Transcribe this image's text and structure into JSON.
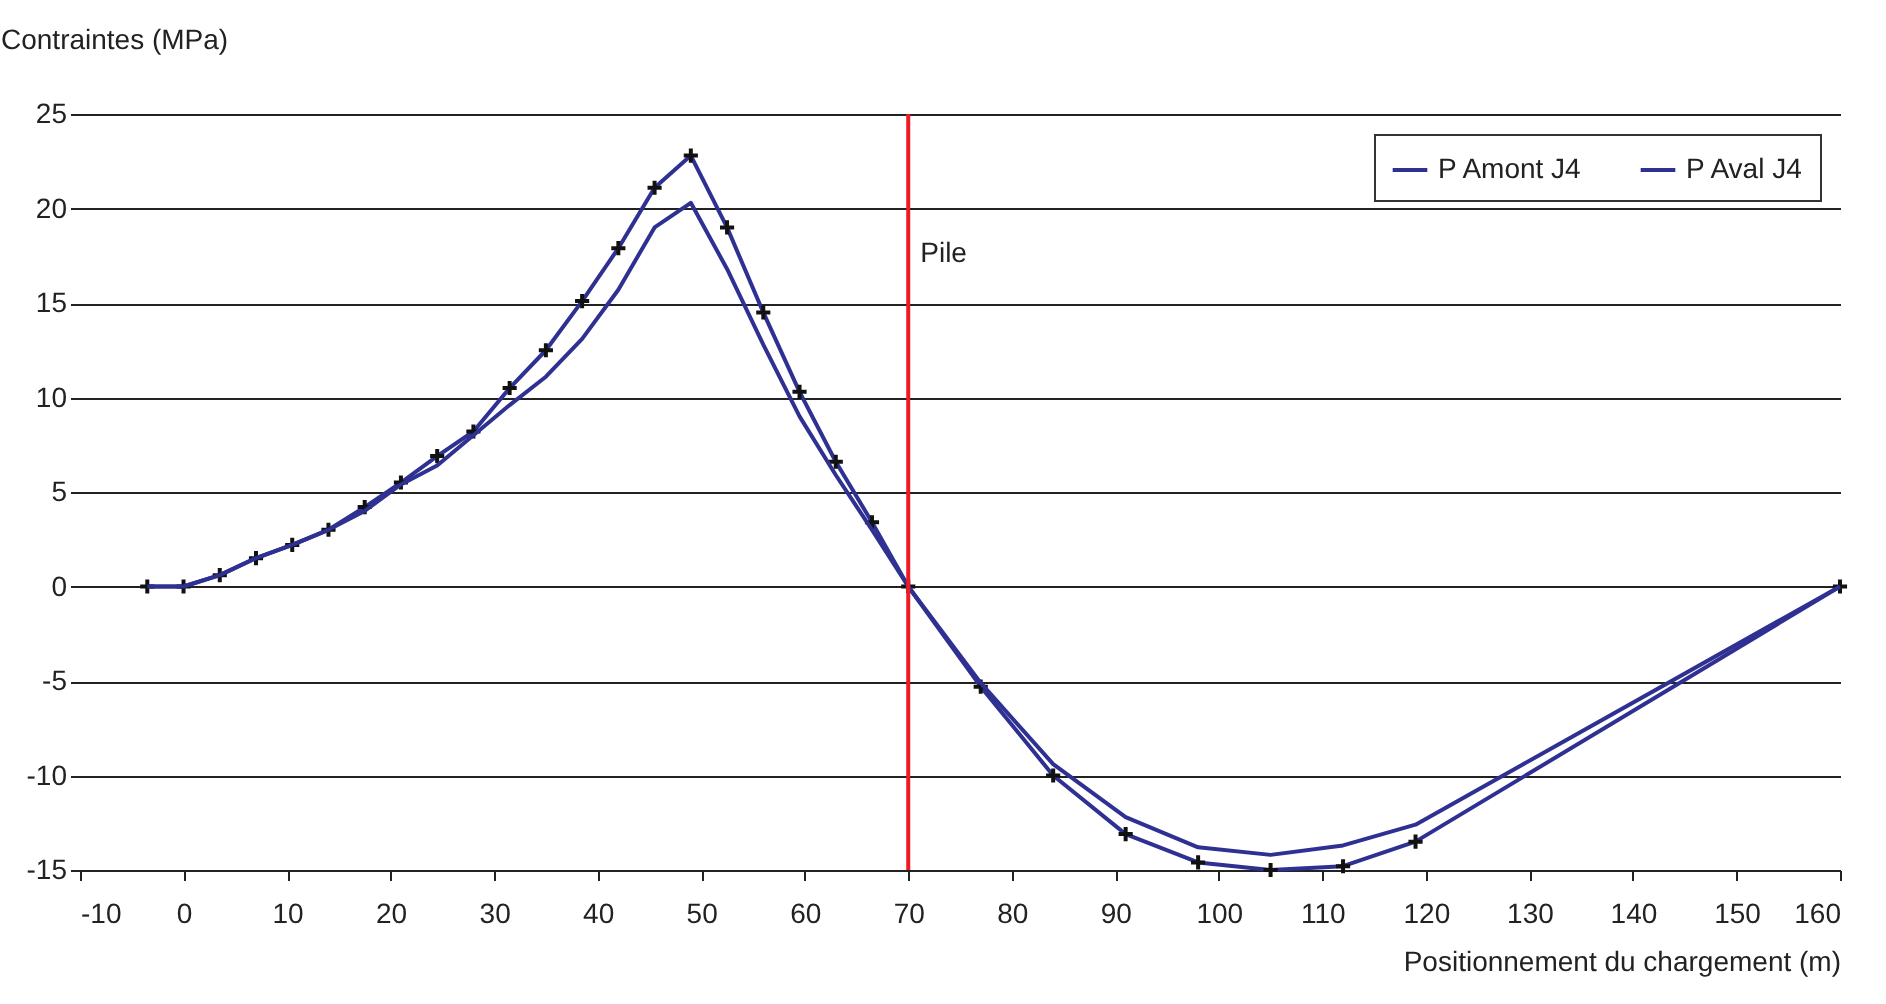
{
  "chart_data": {
    "type": "line",
    "ylabel": "Contraintes (MPa)",
    "xlabel": "Positionnement du chargement (m)",
    "x": [
      -3.5,
      0,
      3.5,
      7,
      10.5,
      14,
      17.5,
      21,
      24.5,
      28,
      31.5,
      35,
      38.5,
      42,
      45.5,
      49,
      52.5,
      56,
      59.5,
      63,
      66.5,
      70,
      77,
      84,
      91,
      98,
      105,
      112,
      119,
      160
    ],
    "series": [
      {
        "name": "P Amont J4",
        "color": "#2e3192",
        "marker": "cross",
        "values": [
          0,
          0,
          0.6,
          1.5,
          2.2,
          3.0,
          4.2,
          5.5,
          6.9,
          8.2,
          10.5,
          12.5,
          15.1,
          17.9,
          21.1,
          22.8,
          19.0,
          14.5,
          10.3,
          6.6,
          3.4,
          0,
          -5.3,
          -10.0,
          -13.1,
          -14.6,
          -15.0,
          -14.8,
          -13.5,
          0
        ]
      },
      {
        "name": "P Aval J4",
        "color": "#2e3192",
        "marker": "none",
        "values": [
          0,
          0,
          0.6,
          1.5,
          2.2,
          3.0,
          4.0,
          5.4,
          6.4,
          8.0,
          9.6,
          11.1,
          13.1,
          15.7,
          19.0,
          20.3,
          16.8,
          12.8,
          9.0,
          5.9,
          3.0,
          0,
          -5.1,
          -9.4,
          -12.2,
          -13.8,
          -14.2,
          -13.7,
          -12.6,
          0
        ]
      }
    ],
    "xlim": [
      -10,
      160
    ],
    "xticks": [
      -10,
      0,
      10,
      20,
      30,
      40,
      50,
      60,
      70,
      80,
      90,
      100,
      110,
      120,
      130,
      140,
      150,
      160
    ],
    "ylim": [
      -15,
      25
    ],
    "yticks": [
      -15,
      -10,
      -5,
      0,
      5,
      10,
      15,
      20,
      25
    ],
    "ref_lines": [
      {
        "axis": "x",
        "value": 70,
        "label": "Pile",
        "color": "#ed1c24"
      }
    ],
    "grid": "y",
    "legend": "top right",
    "line_style": "solid"
  }
}
